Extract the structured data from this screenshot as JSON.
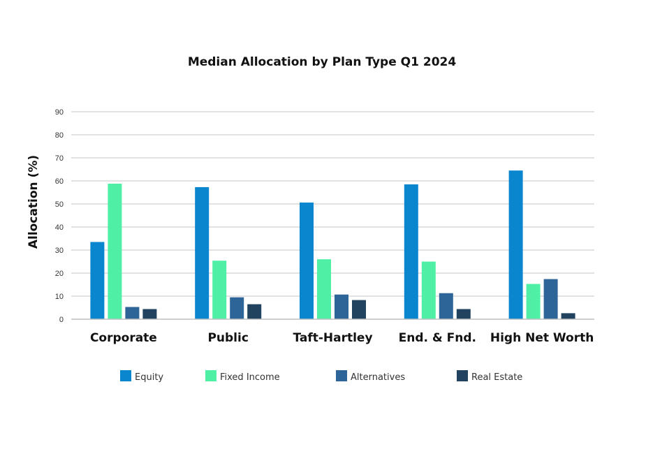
{
  "chart_data": {
    "type": "bar",
    "title": "Median Allocation by Plan Type Q1 2024",
    "xlabel": "",
    "ylabel": "Allocation (%)",
    "ylim": [
      0,
      90
    ],
    "yticks": [
      0,
      10,
      20,
      30,
      40,
      50,
      60,
      70,
      80,
      90
    ],
    "grid": true,
    "legend_position": "bottom",
    "categories": [
      "Corporate",
      "Public",
      "Taft-Hartley",
      "End. & Fnd.",
      "High Net Worth"
    ],
    "series": [
      {
        "name": "Equity",
        "color": "#0a86cf",
        "values": [
          33.5,
          57.3,
          50.6,
          58.5,
          64.5
        ]
      },
      {
        "name": "Fixed Income",
        "color": "#4ff0a6",
        "values": [
          58.8,
          25.4,
          26.0,
          25.0,
          15.3
        ]
      },
      {
        "name": "Alternatives",
        "color": "#2e6598",
        "values": [
          5.3,
          9.5,
          10.7,
          11.3,
          17.4
        ]
      },
      {
        "name": "Real Estate",
        "color": "#22435f",
        "values": [
          4.4,
          6.5,
          8.3,
          4.4,
          2.6
        ]
      }
    ]
  }
}
